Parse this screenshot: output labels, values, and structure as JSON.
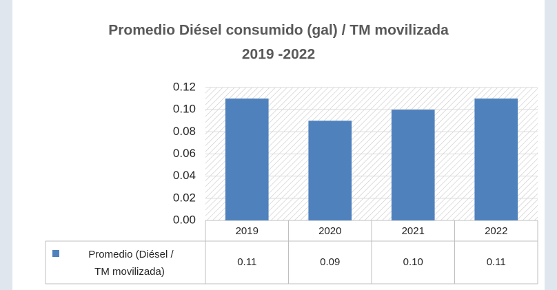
{
  "chart_data": {
    "type": "bar",
    "title": "Promedio Diésel consumido (gal) / TM movilizada",
    "subtitle": "2019 -2022",
    "categories": [
      "2019",
      "2020",
      "2021",
      "2022"
    ],
    "series": [
      {
        "name": "Promedio (Diésel / TM movilizada)",
        "color": "#4f81bd",
        "values": [
          0.11,
          0.09,
          0.1,
          0.11
        ],
        "value_labels": [
          "0.11",
          "0.09",
          "0.10",
          "0.11"
        ]
      }
    ],
    "ylim": [
      0,
      0.12
    ],
    "yticks": [
      {
        "value": 0,
        "label": "0.00"
      },
      {
        "value": 0.02,
        "label": "0.02"
      },
      {
        "value": 0.04,
        "label": "0.04"
      },
      {
        "value": 0.06,
        "label": "0.06"
      },
      {
        "value": 0.08,
        "label": "0.08"
      },
      {
        "value": 0.1,
        "label": "0.10"
      },
      {
        "value": 0.12,
        "label": "0.12"
      }
    ],
    "grid": true
  }
}
